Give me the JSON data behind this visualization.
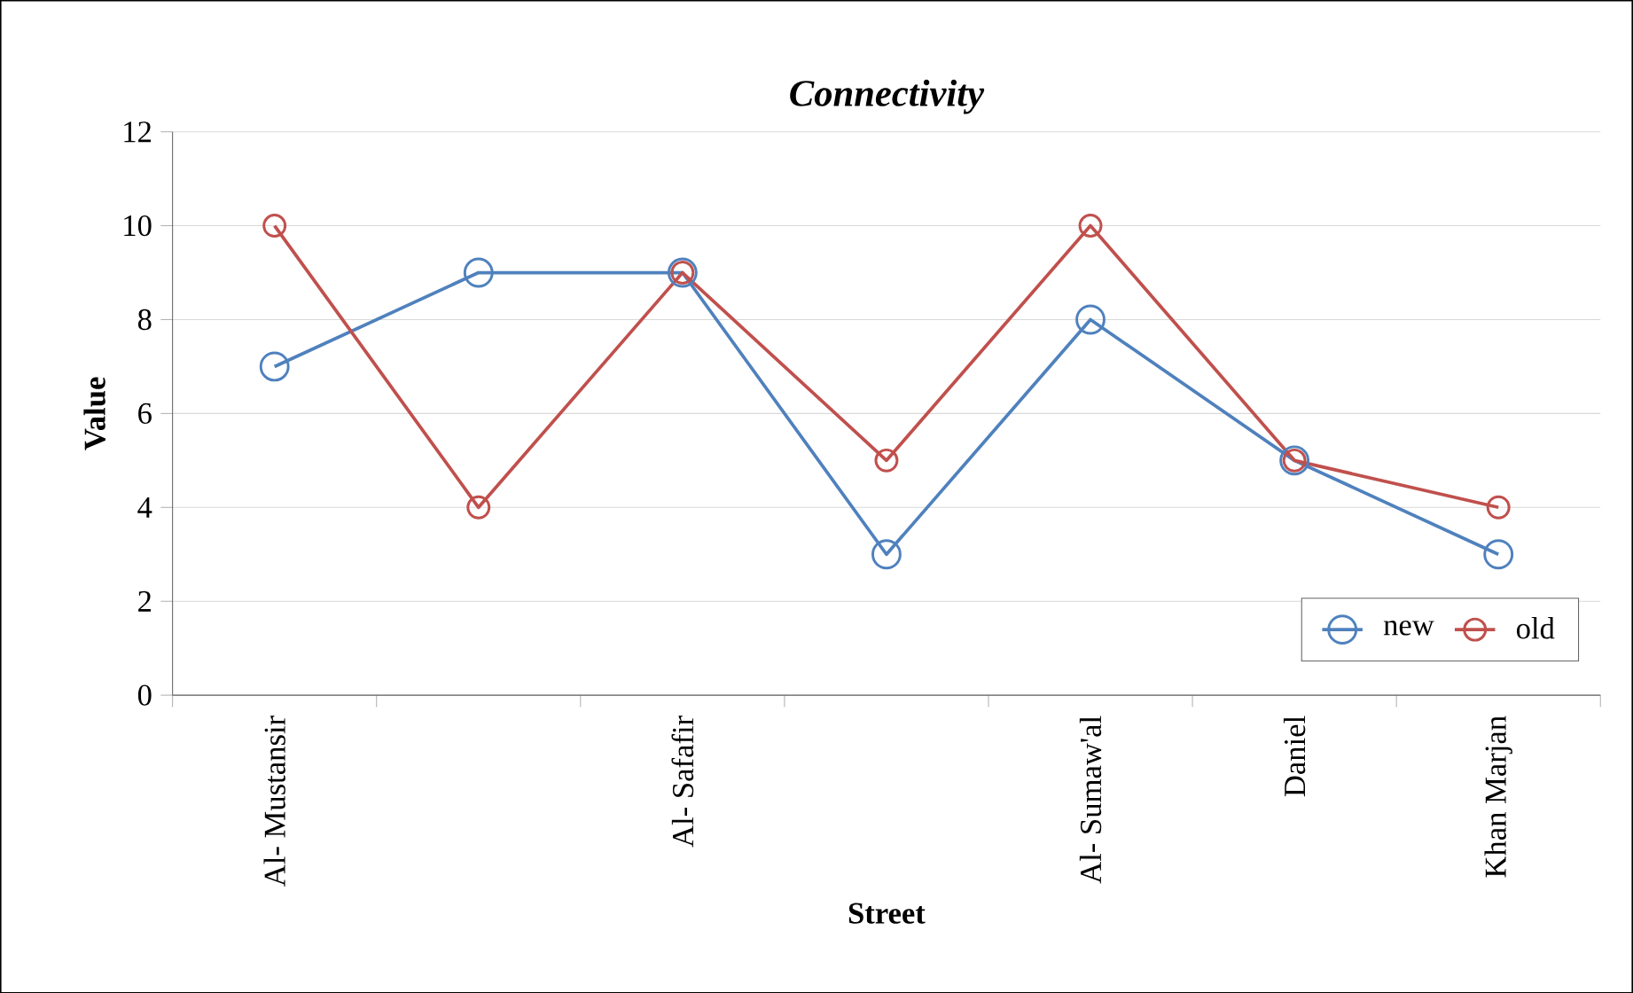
{
  "chart_data": {
    "type": "line",
    "title": "*Connectivity*",
    "xlabel": "Street",
    "ylabel": "Value",
    "categories": [
      "Al- Mustansir",
      null,
      "Al- Safafir",
      null,
      "Al- Sumaw'al",
      "Daniel",
      "Khan Marjan"
    ],
    "series": [
      {
        "name": "new",
        "color": "#4f81bd",
        "values": [
          7,
          9,
          9,
          3,
          8,
          5,
          3
        ]
      },
      {
        "name": "old",
        "color": "#c0504d",
        "values": [
          10,
          4,
          9,
          5,
          10,
          5,
          4
        ]
      }
    ],
    "ylim": [
      0,
      12
    ],
    "yticks": [
      0,
      2,
      4,
      6,
      8,
      10,
      12
    ],
    "grid": "y",
    "legend": "bottom right",
    "marker": "circle"
  }
}
